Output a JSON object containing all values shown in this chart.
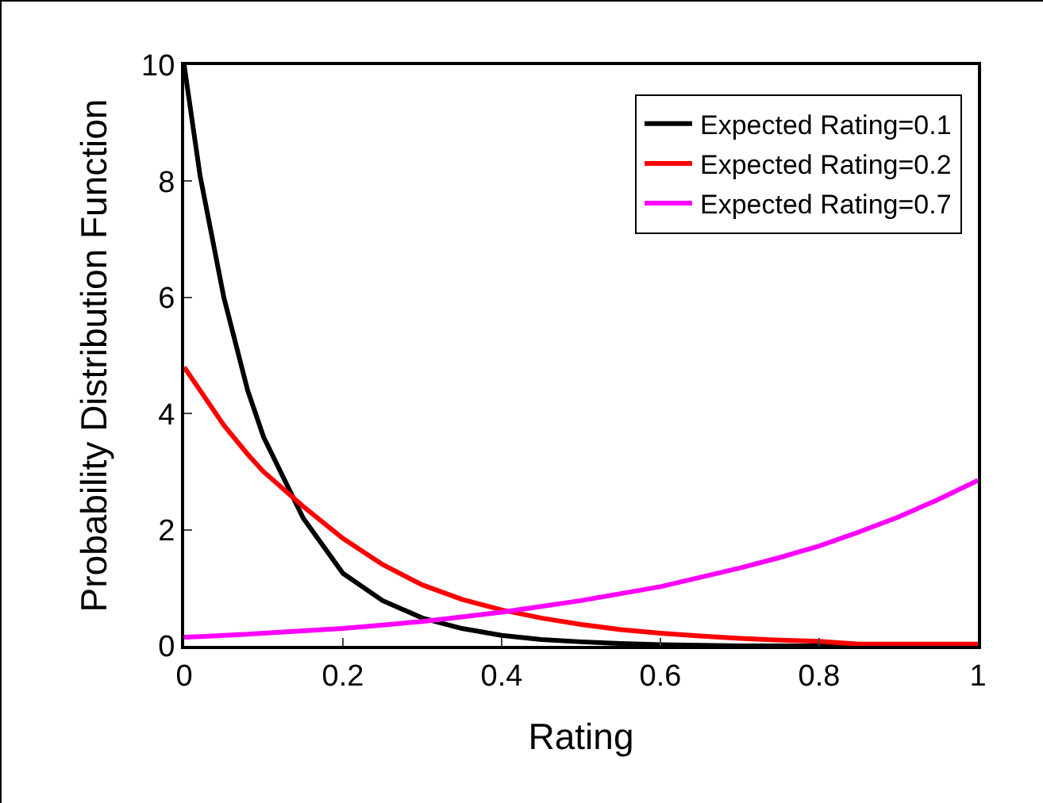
{
  "chart_data": {
    "type": "line",
    "xlabel": "Rating",
    "ylabel": "Probability Distribution Function",
    "x": [
      0,
      0.02,
      0.05,
      0.08,
      0.1,
      0.15,
      0.2,
      0.25,
      0.3,
      0.35,
      0.4,
      0.45,
      0.5,
      0.55,
      0.6,
      0.65,
      0.7,
      0.75,
      0.8,
      0.85,
      0.9,
      0.95,
      1
    ],
    "series": [
      {
        "name": "Expected Rating=0.1",
        "color": "#000000",
        "values": [
          10,
          8.1,
          6.0,
          4.4,
          3.6,
          2.2,
          1.25,
          0.78,
          0.48,
          0.3,
          0.18,
          0.11,
          0.07,
          0.04,
          0.02,
          0.01,
          0,
          0,
          0,
          0,
          0,
          0,
          0
        ]
      },
      {
        "name": "Expected Rating=0.2",
        "color": "#ff0000",
        "values": [
          4.8,
          4.4,
          3.8,
          3.3,
          3.0,
          2.4,
          1.85,
          1.4,
          1.05,
          0.8,
          0.62,
          0.48,
          0.37,
          0.28,
          0.22,
          0.17,
          0.13,
          0.1,
          0.08,
          0.03,
          0.03,
          0.03,
          0.03
        ]
      },
      {
        "name": "Expected Rating=0.7",
        "color": "#ff00ff",
        "values": [
          0.15,
          0.16,
          0.18,
          0.2,
          0.22,
          0.26,
          0.3,
          0.36,
          0.42,
          0.5,
          0.58,
          0.68,
          0.78,
          0.9,
          1.02,
          1.18,
          1.34,
          1.52,
          1.72,
          1.96,
          2.22,
          2.52,
          2.85
        ]
      }
    ],
    "xlim": [
      0,
      1
    ],
    "xticks": [
      0,
      0.2,
      0.4,
      0.6,
      0.8,
      1
    ],
    "ylim": [
      0,
      10
    ],
    "yticks": [
      0,
      2,
      4,
      6,
      8,
      10
    ],
    "grid": false,
    "legend": "top right",
    "line_style": "solid",
    "marker": "none"
  }
}
